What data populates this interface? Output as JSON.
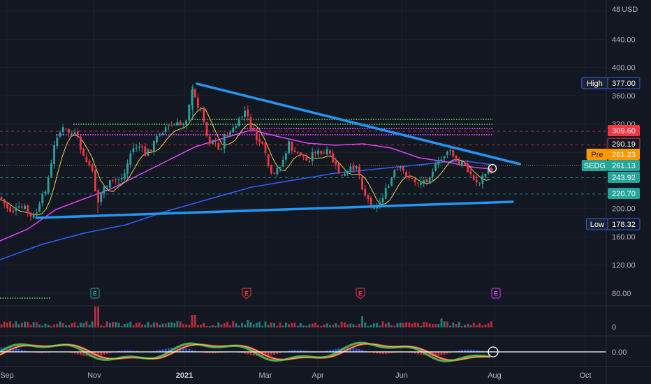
{
  "currency": "USD",
  "price_axis": {
    "ticks": [
      {
        "label": "480.00",
        "v": 480
      },
      {
        "label": "440.00",
        "v": 440
      },
      {
        "label": "400.00",
        "v": 400
      },
      {
        "label": "360.00",
        "v": 360
      },
      {
        "label": "320.00",
        "v": 320
      },
      {
        "label": "280.00",
        "v": 280
      },
      {
        "label": "200.00",
        "v": 200
      },
      {
        "label": "160.00",
        "v": 160
      },
      {
        "label": "120.00",
        "v": 120
      },
      {
        "label": "80.00",
        "v": 80
      }
    ]
  },
  "price_tags": [
    {
      "prefix": "High",
      "value": "377.00",
      "v": 377,
      "bg": "#131722",
      "fg": "#d1d4dc",
      "prefix_bg": "#1e222d",
      "border": "#2962ff"
    },
    {
      "prefix": "",
      "value": "309.60",
      "v": 309.6,
      "bg": "#f23645",
      "fg": "#ffffff"
    },
    {
      "prefix": "",
      "value": "290.19",
      "v": 290.19,
      "bg": "#131722",
      "fg": "#d1d4dc",
      "border": "#f23645"
    },
    {
      "prefix": "Pre",
      "value": "261.23",
      "v": 263.5,
      "bg": "#ff9800",
      "fg": "#131722",
      "prefix_bg": "#ff9800"
    },
    {
      "prefix": "SEDG",
      "value": "261.13",
      "v": 258.5,
      "bg": "#26a69a",
      "fg": "#ffffff",
      "prefix_bg": "#26a69a"
    },
    {
      "prefix": "",
      "value": "243.92",
      "v": 243.92,
      "bg": "#26a69a",
      "fg": "#ffffff"
    },
    {
      "prefix": "",
      "value": "220.70",
      "v": 220.7,
      "bg": "#26a69a",
      "fg": "#ffffff"
    },
    {
      "prefix": "Low",
      "value": "178.32",
      "v": 178.32,
      "bg": "#131722",
      "fg": "#d1d4dc",
      "prefix_bg": "#1e222d",
      "border": "#2962ff"
    }
  ],
  "volume_axis": {
    "label": "0"
  },
  "macd_axis": {
    "label": "0.00"
  },
  "time_axis": [
    {
      "label": "Sep",
      "bold": false
    },
    {
      "label": "Nov",
      "bold": false
    },
    {
      "label": "2021",
      "bold": true
    },
    {
      "label": "Mar",
      "bold": false
    },
    {
      "label": "Apr",
      "bold": false
    },
    {
      "label": "Jun",
      "bold": false
    },
    {
      "label": "Aug",
      "bold": false
    },
    {
      "label": "Oct",
      "bold": false
    }
  ],
  "earnings_markers": [
    {
      "letter": "E",
      "color": "#26a69a"
    },
    {
      "letter": "E",
      "color": "#f23645"
    },
    {
      "letter": "E",
      "color": "#f23645"
    },
    {
      "letter": "E",
      "color": "#e040fb"
    }
  ],
  "colors": {
    "background": "#131722",
    "up": "#26a69a",
    "down": "#f23645",
    "trendline": "#2196f3",
    "ma_fast": "#e6d44a",
    "ma_mid": "#e040fb",
    "ma_slow": "#2962ff",
    "signal_dotted": "#4caf50",
    "resistance_dotted": "#e040fb"
  },
  "chart_data": {
    "type": "candlestick",
    "symbol": "SEDG",
    "currency": "USD",
    "ylim": [
      60,
      490
    ],
    "x_range": [
      "2020-08-25",
      "2021-10-15"
    ],
    "key_levels": [
      {
        "label": "High",
        "value": 377.0
      },
      {
        "label": "",
        "value": 309.6
      },
      {
        "label": "",
        "value": 290.19
      },
      {
        "label": "Pre",
        "value": 261.23
      },
      {
        "label": "SEDG",
        "value": 261.13
      },
      {
        "label": "",
        "value": 243.92
      },
      {
        "label": "",
        "value": 220.7
      },
      {
        "label": "Low",
        "value": 178.32
      }
    ],
    "trendlines": [
      {
        "name": "upper",
        "from": {
          "x": "2021-01-10",
          "y": 377
        },
        "to": {
          "x": "2021-08-05",
          "y": 258
        }
      },
      {
        "name": "lower",
        "from": {
          "x": "2020-09-15",
          "y": 186
        },
        "to": {
          "x": "2021-08-05",
          "y": 207
        }
      }
    ],
    "indicators": [
      "moving averages (3)",
      "volume",
      "MACD"
    ]
  }
}
